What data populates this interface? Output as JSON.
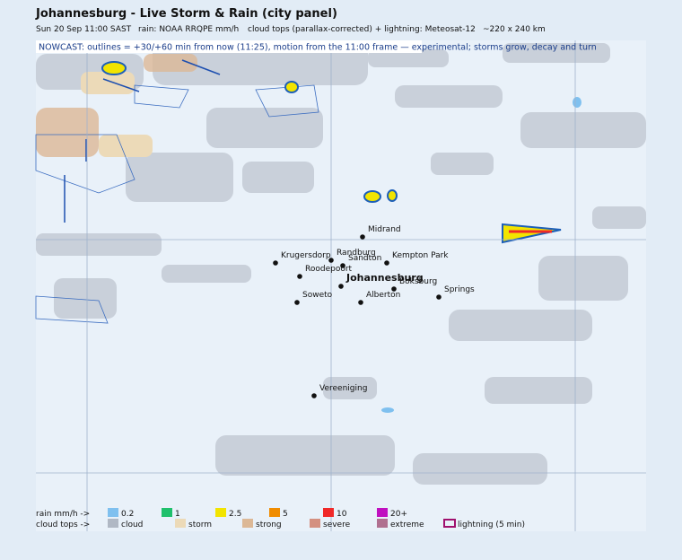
{
  "header": {
    "title": "Johannesburg - Live Storm & Rain (city panel)",
    "subtitle": [
      "Sun 20 Sep 11:00 SAST",
      "rain: NOAA RRQPE mm/h",
      "cloud tops (parallax-corrected) + lightning: Meteosat-12",
      "~220 x 240 km"
    ]
  },
  "nowcast": "NOWCAST: outlines = +30/+60 min from now (11:25), motion from the 11:00 frame — experimental; storms grow, decay and turn",
  "cities": [
    "Midrand",
    "Krugersdorp",
    "Randburg",
    "Sandton",
    "Kempton Park",
    "Roodepoort",
    "Johannesburg",
    "Boksburg",
    "Springs",
    "Soweto",
    "Alberton",
    "Vereeniging"
  ],
  "legend": {
    "rain_label": "rain mm/h ->",
    "rain": [
      {
        "label": "0.2",
        "color": "#7fc0ef"
      },
      {
        "label": "1",
        "color": "#1fc06c"
      },
      {
        "label": "2.5",
        "color": "#f2e400"
      },
      {
        "label": "5",
        "color": "#f08c00"
      },
      {
        "label": "10",
        "color": "#f02828"
      },
      {
        "label": "20+",
        "color": "#c010c0"
      }
    ],
    "cloud_label": "cloud tops ->",
    "cloud": [
      {
        "label": "cloud",
        "color": "#b0b8c4"
      },
      {
        "label": "storm",
        "color": "#ecdab8"
      },
      {
        "label": "strong",
        "color": "#dcb896"
      },
      {
        "label": "severe",
        "color": "#d49080"
      },
      {
        "label": "extreme",
        "color": "#b07090"
      },
      {
        "label": "lightning (5 min)",
        "color": "#a0106e",
        "outline": true
      }
    ]
  }
}
